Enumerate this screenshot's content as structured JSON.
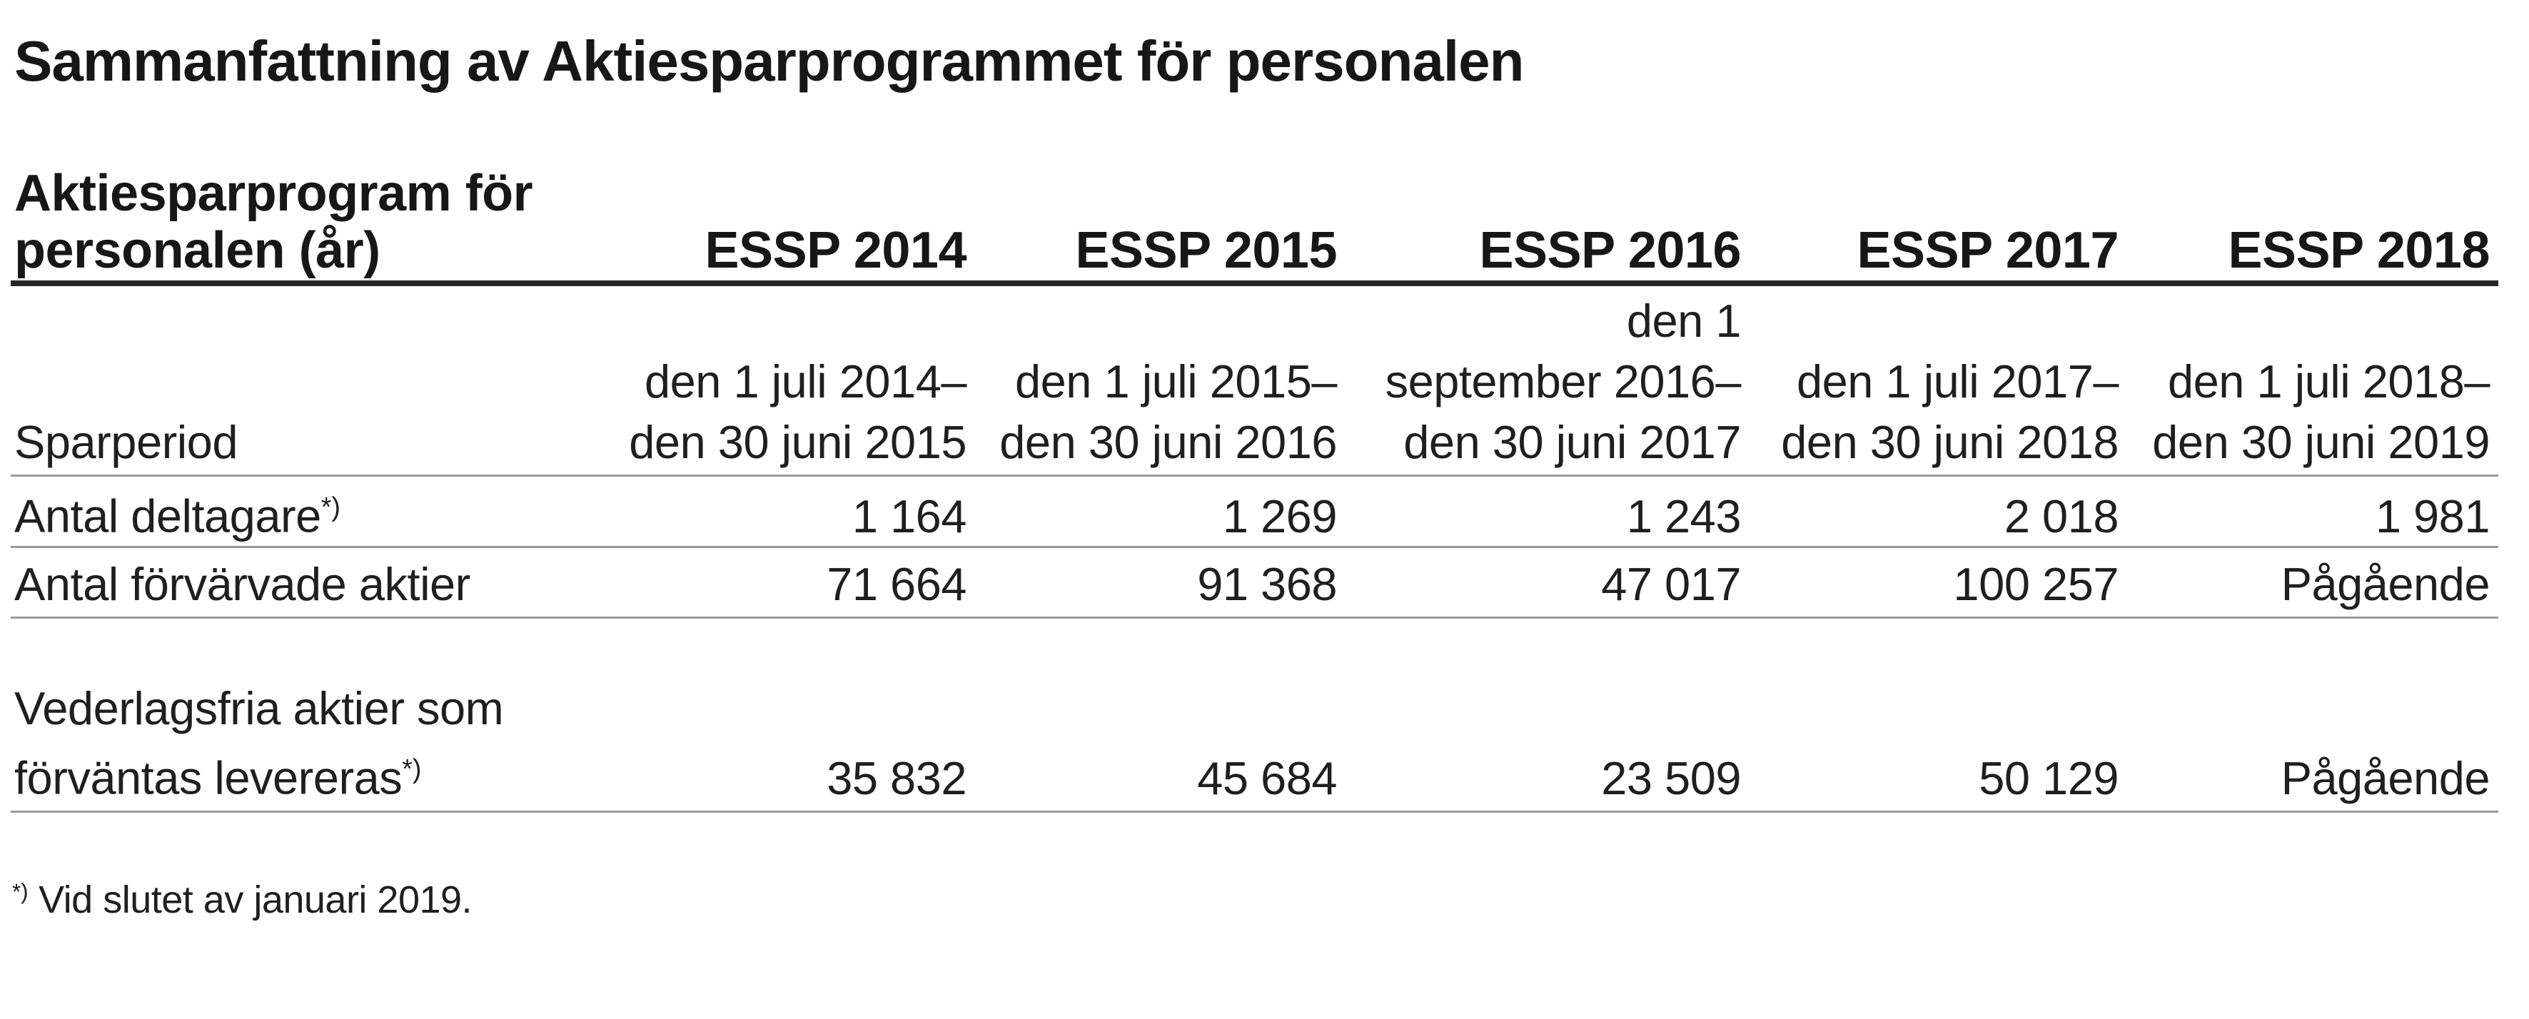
{
  "title": "Sammanfattning av Aktiesparprogrammet för personalen",
  "table": {
    "header": {
      "label_line1": "Aktiesparprogram för",
      "label_line2": "personalen (år)",
      "columns": [
        "ESSP 2014",
        "ESSP 2015",
        "ESSP 2016",
        "ESSP 2017",
        "ESSP 2018"
      ]
    },
    "rows": [
      {
        "label": "Sparperiod",
        "values_lines": [
          [
            "den 1 juli 2014–",
            "den 30 juni 2015"
          ],
          [
            "den 1 juli 2015–",
            "den 30 juni 2016"
          ],
          [
            "den 1",
            "september 2016–",
            "den 30 juni 2017"
          ],
          [
            "den 1 juli 2017–",
            "den 30 juni 2018"
          ],
          [
            "den 1 juli 2018–",
            "den 30 juni 2019"
          ]
        ]
      },
      {
        "label": "Antal deltagare",
        "label_sup": "*)",
        "values": [
          "1 164",
          "1 269",
          "1 243",
          "2 018",
          "1 981"
        ]
      },
      {
        "label": "Antal förvärvade aktier",
        "values": [
          "71 664",
          "91 368",
          "47 017",
          "100 257",
          "Pågående"
        ]
      },
      {
        "label_line1": "Vederlagsfria aktier som",
        "label_line2": "förväntas levereras",
        "label_sup": "*)",
        "values": [
          "35 832",
          "45 684",
          "23 509",
          "50 129",
          "Pågående"
        ]
      }
    ]
  },
  "footnote": {
    "sup": "*)",
    "text": "Vid slutet av januari 2019."
  }
}
